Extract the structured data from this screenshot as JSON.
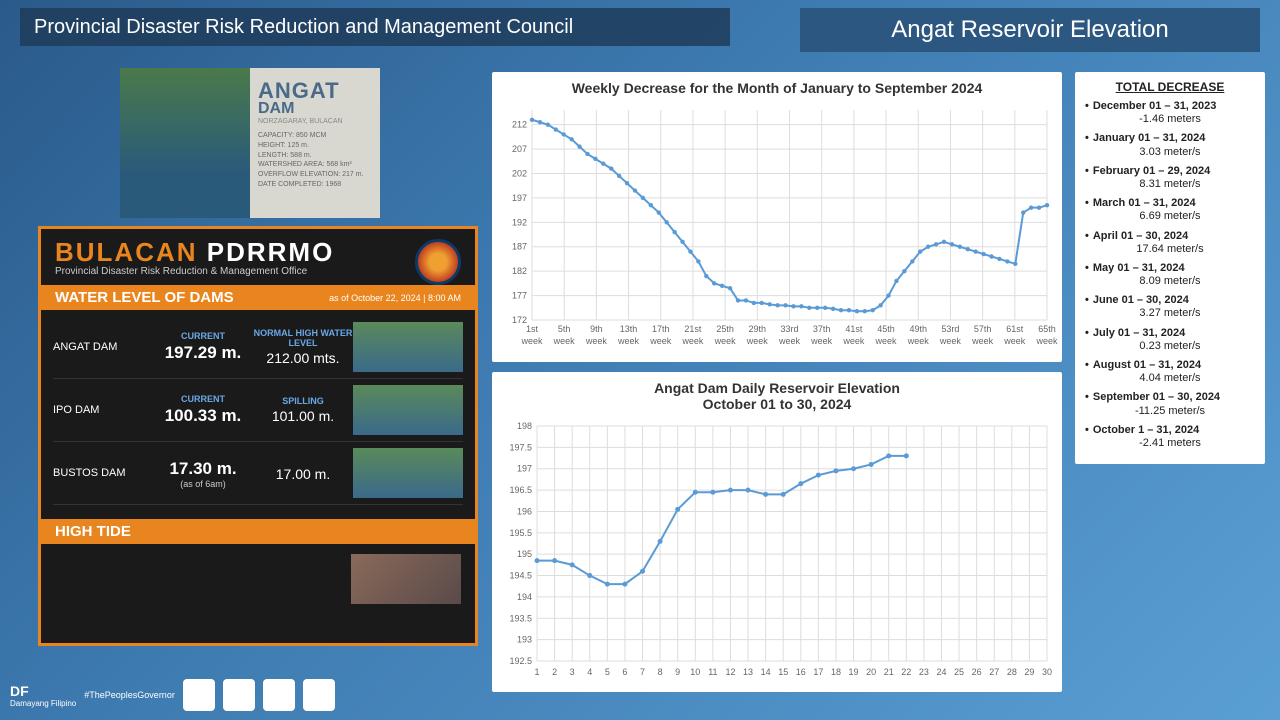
{
  "header": {
    "left": "Provincial Disaster Risk Reduction and Management Council",
    "right": "Angat Reservoir Elevation"
  },
  "damCard": {
    "title": "ANGAT",
    "subtitle": "DAM",
    "location": "NORZAGARAY, BULACAN",
    "specLabels": [
      "CAPACITY:",
      "HEIGHT:",
      "LENGTH:",
      "WATERSHED AREA:",
      "OVERFLOW ELEVATION:",
      "DATE COMPLETED:"
    ],
    "specVals": [
      "850 MCM",
      "125 m.",
      "588 m.",
      "568 km²",
      "217 m.",
      "1968"
    ]
  },
  "pdrrmo": {
    "title_b": "BULACAN ",
    "title_p": "PDRRMO",
    "sub": "Provincial Disaster Risk Reduction & Management Office",
    "waterBanner": "WATER LEVEL OF DAMS",
    "asof": "as of October 22, 2024 | 8:00 AM",
    "col1": "CURRENT",
    "col2a": "NORMAL HIGH WATER LEVEL",
    "col2b": "SPILLING",
    "rows": [
      {
        "name": "ANGAT DAM",
        "current": "197.29 m.",
        "second": "212.00 mts.",
        "sub": ""
      },
      {
        "name": "IPO DAM",
        "current": "100.33 m.",
        "second": "101.00 m.",
        "sub": ""
      },
      {
        "name": "BUSTOS DAM",
        "current": "17.30 m.",
        "second": "17.00 m.",
        "sub": "(as of 6am)"
      }
    ],
    "hightide": "HIGH TIDE"
  },
  "chart1": {
    "title": "Weekly Decrease for the Month of January to September 2024",
    "ymin": 172,
    "ymax": 215,
    "yticks": [
      172,
      177,
      182,
      187,
      192,
      197,
      202,
      207,
      212
    ],
    "xticks": [
      "1st",
      "5th",
      "9th",
      "13th",
      "17th",
      "21st",
      "25th",
      "29th",
      "33rd",
      "37th",
      "41st",
      "45th",
      "49th",
      "53rd",
      "57th",
      "61st",
      "65th"
    ],
    "xsuffix": "week",
    "values": [
      213,
      212.5,
      212,
      211,
      210,
      209,
      207.5,
      206,
      205,
      204,
      203,
      201.5,
      200,
      198.5,
      197,
      195.5,
      194,
      192,
      190,
      188,
      186,
      184,
      181,
      179.5,
      179,
      178.5,
      176,
      176,
      175.5,
      175.5,
      175.2,
      175,
      175,
      174.8,
      174.8,
      174.5,
      174.5,
      174.5,
      174.3,
      174,
      174,
      173.8,
      173.8,
      174,
      175,
      177,
      180,
      182,
      184,
      186,
      187,
      187.5,
      188,
      187.5,
      187,
      186.5,
      186,
      185.5,
      185,
      184.5,
      184,
      183.5,
      194,
      195,
      195,
      195.5
    ]
  },
  "chart2": {
    "title": "Angat Dam Daily Reservoir Elevation",
    "subtitle": "October 01 to 30, 2024",
    "ymin": 192.5,
    "ymax": 198,
    "yticks": [
      192.5,
      193,
      193.5,
      194,
      194.5,
      195,
      195.5,
      196,
      196.5,
      197,
      197.5,
      198
    ],
    "xmax": 30,
    "values": [
      194.85,
      194.85,
      194.75,
      194.5,
      194.3,
      194.3,
      194.6,
      195.3,
      196.05,
      196.45,
      196.45,
      196.5,
      196.5,
      196.4,
      196.4,
      196.65,
      196.85,
      196.95,
      197.0,
      197.1,
      197.3,
      197.3
    ]
  },
  "sidebar": {
    "title": "TOTAL DECREASE",
    "items": [
      {
        "d": "December 01 – 31, 2023",
        "v": "-1.46 meters"
      },
      {
        "d": "January 01 – 31, 2024",
        "v": "3.03 meter/s"
      },
      {
        "d": "February 01 – 29, 2024",
        "v": "8.31 meter/s"
      },
      {
        "d": "March 01 – 31, 2024",
        "v": "6.69 meter/s"
      },
      {
        "d": "April 01 – 30, 2024",
        "v": "17.64 meter/s"
      },
      {
        "d": "May 01 – 31, 2024",
        "v": "8.09 meter/s"
      },
      {
        "d": "June 01 – 30, 2024",
        "v": "3.27 meter/s"
      },
      {
        "d": "July 01 – 31, 2024",
        "v": "0.23 meter/s"
      },
      {
        "d": "August 01 – 31, 2024",
        "v": "4.04 meter/s"
      },
      {
        "d": "September 01 – 30, 2024",
        "v": "-11.25 meter/s"
      },
      {
        "d": "October 1 – 31, 2024",
        "v": "-2.41 meters"
      }
    ]
  },
  "footer": {
    "df": "DF",
    "sub": "Damayang Filipino",
    "tag": "#ThePeoplesGovernor"
  },
  "colors": {
    "line": "#5b9bd5",
    "grid": "#dddddd",
    "orange": "#e8851e"
  }
}
